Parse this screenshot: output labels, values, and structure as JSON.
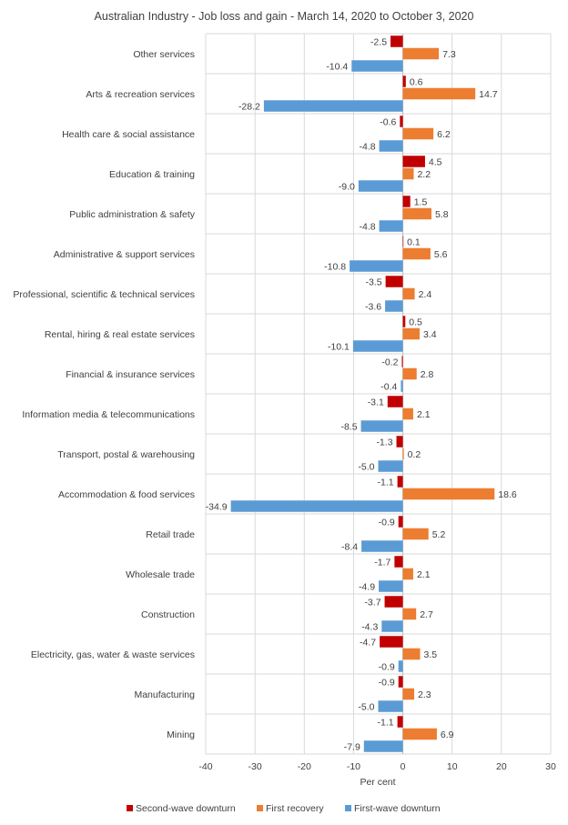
{
  "chart_data": {
    "type": "bar",
    "orientation": "horizontal",
    "title": "Australian Industry - Job loss and gain - March 14, 2020 to October 3, 2020",
    "xlabel": "Per cent",
    "ylabel": "",
    "xlim": [
      -40,
      30
    ],
    "xticks": [
      -40,
      -30,
      -20,
      -10,
      0,
      10,
      20,
      30
    ],
    "grid": true,
    "legend_position": "bottom",
    "categories": [
      "Other services",
      "Arts & recreation services",
      "Health care & social assistance",
      "Education & training",
      "Public administration & safety",
      "Administrative & support services",
      "Professional, scientific & technical services",
      "Rental, hiring & real estate services",
      "Financial & insurance services",
      "Information media & telecommunications",
      "Transport, postal & warehousing",
      "Accommodation & food services",
      "Retail trade",
      "Wholesale trade",
      "Construction",
      "Electricity, gas, water & waste services",
      "Manufacturing",
      "Mining"
    ],
    "series": [
      {
        "name": "Second-wave downturn",
        "color": "#c00000",
        "values": [
          -2.5,
          0.6,
          -0.6,
          4.5,
          1.5,
          0.1,
          -3.5,
          0.5,
          -0.2,
          -3.1,
          -1.3,
          -1.1,
          -0.9,
          -1.7,
          -3.7,
          -4.7,
          -0.9,
          -1.1
        ],
        "labels": [
          "-2.5",
          "0.6",
          "-0.6",
          "4.5",
          "1.5",
          "0.1",
          "-3.5",
          "0.5",
          "-0.2",
          "-3.1",
          "-1.3",
          "-1.1",
          "-0.9",
          "-1.7",
          "-3.7",
          "-4.7",
          "-0.9",
          "-1.1"
        ]
      },
      {
        "name": "First recovery",
        "color": "#ed7d31",
        "values": [
          7.3,
          14.7,
          6.2,
          2.2,
          5.8,
          5.6,
          2.4,
          3.4,
          2.8,
          2.1,
          0.2,
          18.6,
          5.2,
          2.1,
          2.7,
          3.5,
          2.3,
          6.9
        ],
        "labels": [
          "7.3",
          "14.7",
          "6.2",
          "2.2",
          "5.8",
          "5.6",
          "2.4",
          "3.4",
          "2.8",
          "2.1",
          "0.2",
          "18.6",
          "5.2",
          "2.1",
          "2.7",
          "3.5",
          "2.3",
          "6.9"
        ]
      },
      {
        "name": "First-wave downturn",
        "color": "#5b9bd5",
        "values": [
          -10.4,
          -28.2,
          -4.8,
          -9.0,
          -4.8,
          -10.8,
          -3.6,
          -10.1,
          -0.4,
          -8.5,
          -5.0,
          -34.9,
          -8.4,
          -4.9,
          -4.3,
          -0.9,
          -5.0,
          -7.9
        ],
        "labels": [
          "-10.4",
          "-28.2",
          "-4.8",
          "-9.0",
          "-4.8",
          "-10.8",
          "-3.6",
          "-10.1",
          "-0.4",
          "-8.5",
          "-5.0",
          "-34.9",
          "-8.4",
          "-4.9",
          "-4.3",
          "-0.9",
          "-5.0",
          "-7.9"
        ]
      }
    ]
  },
  "colors": {
    "grid": "#d9d9d9",
    "text": "#404040"
  }
}
